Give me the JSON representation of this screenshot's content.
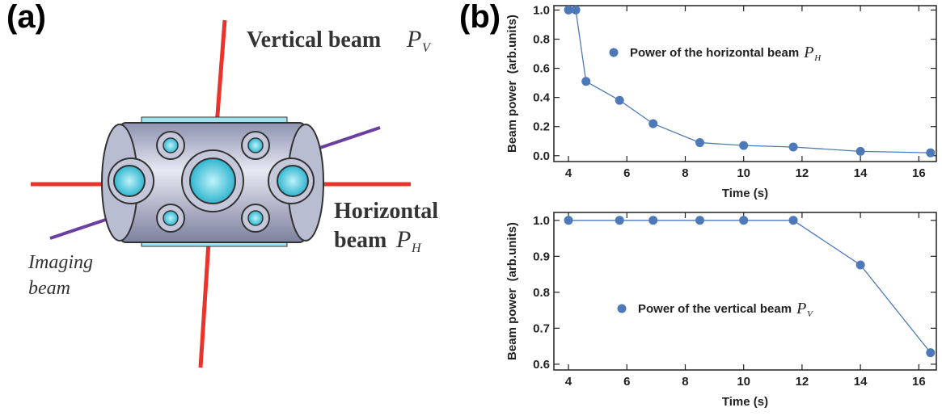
{
  "panel_labels": {
    "a": "(a)",
    "b": "(b)"
  },
  "diagram": {
    "vertical": {
      "text": "Vertical beam",
      "symbol": "P",
      "subscript": "V"
    },
    "horizontal": {
      "line1": "Horizontal",
      "line2": "beam",
      "symbol": "P",
      "subscript": "H"
    },
    "imaging": {
      "line1": "Imaging",
      "line2": "beam"
    }
  },
  "chart_data": [
    {
      "type": "line",
      "x_label": "Time (s)",
      "y_label": "Beam power  (arb.units)",
      "x": [
        4,
        4.25,
        4.6,
        5.75,
        6.9,
        8.5,
        10,
        11.7,
        14,
        16.4
      ],
      "series": [
        {
          "name": "Power of the horizontal beam",
          "legend_symbol": "P",
          "legend_subscript": "H",
          "color": "#4e79b8",
          "values": [
            1.0,
            1.0,
            0.51,
            0.38,
            0.22,
            0.09,
            0.07,
            0.06,
            0.03,
            0.02
          ]
        }
      ],
      "xlim": [
        3.5,
        16.6
      ],
      "xticks": [
        4,
        6,
        8,
        10,
        12,
        14,
        16
      ],
      "ylim": [
        -0.04,
        1.03
      ],
      "yticks": [
        {
          "value": 0,
          "label": "0.0"
        },
        0.2,
        0.4,
        0.6,
        0.8,
        {
          "value": 1,
          "label": "1.0"
        }
      ]
    },
    {
      "type": "line",
      "x_label": "Time (s)",
      "y_label": "Beam power  (arb.units)",
      "x": [
        4,
        5.75,
        6.9,
        8.5,
        10,
        11.7,
        14,
        16.4
      ],
      "series": [
        {
          "name": "Power of the vertical beam",
          "legend_symbol": "P",
          "legend_subscript": "V",
          "color": "#4e79b8",
          "values": [
            1.0,
            1.0,
            1.0,
            1.0,
            1.0,
            1.0,
            0.876,
            0.632
          ]
        }
      ],
      "xlim": [
        3.5,
        16.6
      ],
      "xticks": [
        4,
        6,
        8,
        10,
        12,
        14,
        16
      ],
      "ylim": [
        0.584,
        1.022
      ],
      "yticks": [
        0.6,
        0.7,
        0.8,
        0.9,
        {
          "value": 1,
          "label": "1.0"
        }
      ]
    }
  ]
}
